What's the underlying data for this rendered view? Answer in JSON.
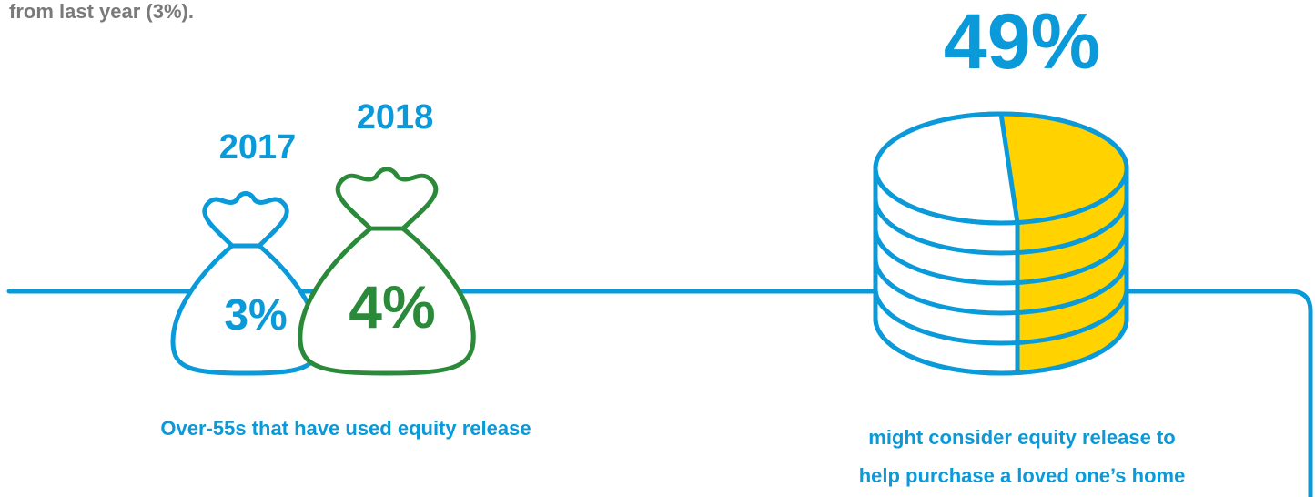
{
  "intro_text": "from last year (3%).",
  "bags": [
    {
      "year": "2017",
      "value": "3%"
    },
    {
      "year": "2018",
      "value": "4%"
    }
  ],
  "bags_caption": "Over-55s that have used equity release",
  "coins": {
    "value": "49%",
    "caption_lines": [
      "might consider equity release to",
      "help purchase a loved one’s home"
    ]
  }
}
